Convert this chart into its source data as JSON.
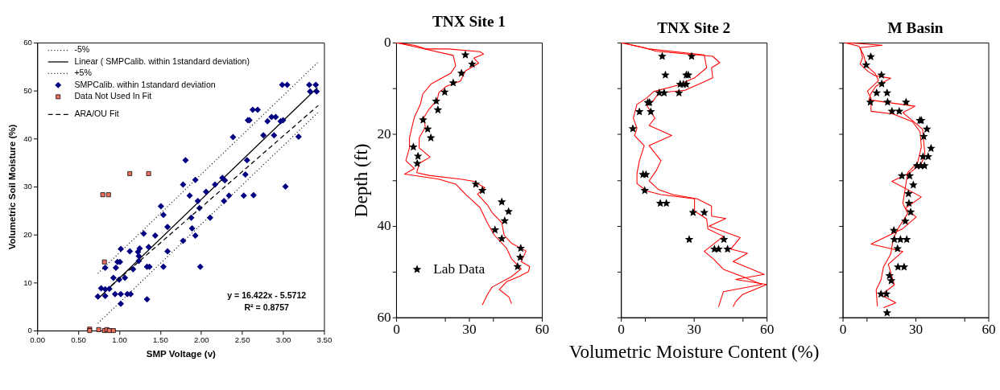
{
  "chart_data": [
    {
      "type": "scatter",
      "xlabel": "SMP Voltage (v)",
      "ylabel": "Volumetric Soil Moisture (%)",
      "xlim": [
        0,
        3.5
      ],
      "ylim": [
        0,
        60
      ],
      "xticks": [
        {
          "value": 0,
          "label": "0.00"
        },
        {
          "value": 0.5,
          "label": "0.50"
        },
        {
          "value": 1,
          "label": "1.00"
        },
        {
          "value": 1.5,
          "label": "1.50"
        },
        {
          "value": 2,
          "label": "2.00"
        },
        {
          "value": 2.5,
          "label": "2.50"
        },
        {
          "value": 3,
          "label": "3.00"
        },
        {
          "value": 3.5,
          "label": "3.50"
        }
      ],
      "yticks": [
        0,
        10,
        20,
        30,
        40,
        50,
        60
      ],
      "grid": false,
      "legend": "top left",
      "annotations": [
        "y = 16.422x - 5.5712",
        "R² = 0.8757"
      ],
      "series": [
        {
          "name": "-5%",
          "type": "line",
          "color": "#000000",
          "line_style": "dotted",
          "x": [
            0.74,
            3.43
          ],
          "values": [
            1.5,
            45.5
          ]
        },
        {
          "name": "Linear ( SMPCalib. within 1standard deviation)",
          "type": "line",
          "color": "#000000",
          "line_style": "solid",
          "x": [
            0.74,
            3.42
          ],
          "values": [
            6.6,
            50.6
          ]
        },
        {
          "name": "+5%",
          "type": "line",
          "color": "#000000",
          "line_style": "dotted",
          "x": [
            0.74,
            3.42
          ],
          "values": [
            11.9,
            55.8
          ]
        },
        {
          "name": "SMPCalib. within 1standard deviation",
          "marker": "diamond",
          "color": "#000080",
          "x": [
            0.74,
            0.78,
            0.83,
            0.83,
            0.83,
            0.88,
            0.93,
            0.95,
            0.96,
            0.98,
            1.01,
            1.0,
            1.02,
            1.02,
            1.02,
            1.07,
            1.1,
            1.14,
            1.13,
            1.17,
            1.23,
            1.24,
            1.25,
            1.24,
            1.3,
            1.34,
            1.34,
            1.36,
            1.37,
            1.44,
            1.51,
            1.54,
            1.54,
            1.59,
            1.59,
            1.78,
            1.78,
            1.81,
            1.86,
            1.88,
            1.89,
            1.93,
            1.93,
            1.96,
            1.98,
            1.99,
            2.06,
            2.11,
            2.17,
            2.26,
            2.28,
            2.29,
            2.34,
            2.39,
            2.52,
            2.54,
            2.56,
            2.57,
            2.59,
            2.63,
            2.64,
            2.69,
            2.76,
            2.81,
            2.86,
            2.89,
            2.91,
            2.97,
            3.0,
            2.99,
            3.05,
            3.03,
            3.19,
            3.32,
            3.33,
            3.4,
            3.41
          ],
          "values": [
            7.1,
            8.8,
            8.6,
            7.2,
            13.1,
            8.7,
            11.0,
            7.6,
            13.1,
            14.3,
            14.3,
            10.6,
            17.0,
            7.6,
            5.6,
            11.0,
            7.6,
            7.6,
            16.5,
            12.8,
            16.4,
            15.5,
            17.1,
            14.5,
            20.2,
            13.3,
            6.5,
            17.4,
            13.3,
            19.8,
            25.9,
            24.1,
            13.3,
            21.6,
            16.5,
            18.7,
            30.4,
            35.5,
            28.1,
            23.5,
            21.3,
            31.4,
            19.8,
            27.0,
            25.5,
            13.3,
            28.9,
            23.5,
            30.4,
            31.8,
            27.0,
            31.3,
            28.1,
            40.3,
            28.1,
            32.5,
            35.5,
            43.8,
            43.8,
            46.0,
            28.2,
            46.0,
            40.7,
            43.6,
            44.5,
            40.7,
            44.5,
            43.6,
            43.8,
            51.2,
            51.2,
            30.0,
            40.4,
            51.2,
            49.8,
            51.2,
            49.8
          ]
        },
        {
          "name": "Data Not Used In Fit",
          "marker": "square",
          "color": "#f07060",
          "x": [
            0.8,
            0.87,
            1.13,
            1.36,
            0.82,
            0.64,
            0.64,
            0.75,
            0.82,
            0.85,
            0.88,
            0.93
          ],
          "values": [
            28.3,
            28.3,
            32.7,
            32.7,
            14.3,
            0.3,
            0,
            0.2,
            0,
            0.2,
            0,
            0
          ]
        },
        {
          "name": "ARA/OU Fit",
          "type": "line",
          "color": "#000000",
          "line_style": "dashed",
          "x": [
            0.9,
            3.43
          ],
          "values": [
            9.3,
            46.9
          ]
        }
      ]
    },
    {
      "type": "line",
      "title": "TNX Site 1",
      "ylabel": "Depth (ft)",
      "xlim": [
        0,
        60
      ],
      "ylim": [
        60,
        0
      ],
      "xticks": [
        0,
        {
          "value": 20,
          "label": null
        },
        30,
        {
          "value": 40,
          "label": null
        },
        60
      ],
      "yticks": [
        0,
        {
          "value": 10,
          "label": null
        },
        20,
        {
          "value": 30,
          "label": null
        },
        40,
        {
          "value": 50,
          "label": null
        },
        60
      ],
      "grid": false,
      "legend": "bottom left",
      "series": [
        {
          "color": "#ff0000",
          "x": [
            0,
            7.5,
            12.5,
            21.5,
            34.5,
            36,
            32,
            34,
            28.5,
            26.5,
            20.5,
            17.5,
            17,
            13.5,
            11.5,
            12,
            9.5,
            9.5,
            14,
            9.5,
            8.5,
            13.5,
            26.5,
            32,
            36.5,
            33.5,
            37.5,
            39.5,
            43.5,
            44.5,
            47.5,
            53.5,
            51.5,
            55,
            54.5,
            50.5,
            45.5,
            42.5,
            46.5,
            47.5
          ],
          "values": [
            0,
            0.6,
            1.4,
            1.4,
            2.0,
            2.5,
            3.4,
            4.5,
            6.2,
            8.4,
            9.6,
            11.0,
            12.4,
            14.6,
            16.3,
            18.5,
            20.8,
            23.0,
            25.0,
            26.4,
            28.4,
            29.0,
            29.8,
            30.3,
            31.7,
            33.1,
            35.4,
            37.1,
            39.3,
            42.1,
            43.8,
            45.5,
            47.8,
            48.9,
            50.0,
            51.1,
            52.2,
            53.9,
            55.6,
            57.0
          ]
        },
        {
          "color": "#ff0000",
          "x": [
            0,
            23.5,
            24.5,
            22.5,
            14.5,
            11,
            10,
            7.5,
            6.5,
            5.5,
            5.5,
            4,
            7.5,
            3.5,
            17.5,
            24.5,
            28.5,
            34.5,
            37.5,
            40.5,
            45.5,
            47.5,
            51.5,
            47.5,
            39.5,
            37.5,
            35.5
          ],
          "values": [
            0,
            2.8,
            5.1,
            6.7,
            9.0,
            11.2,
            13.5,
            16.3,
            18.5,
            20.8,
            23.0,
            25.8,
            27.5,
            28.7,
            29.8,
            30.9,
            33.1,
            36.0,
            39.3,
            42.1,
            44.9,
            47.2,
            49.4,
            51.1,
            53.4,
            55.1,
            57.3
          ]
        },
        {
          "name": "Lab Data",
          "type": "scatter",
          "marker": "star",
          "color": "#000000",
          "x": [
            28.5,
            31.3,
            26.9,
            23.5,
            20,
            16.5,
            17.2,
            11.1,
            13,
            14.3,
            7.1,
            9,
            8.7,
            32.8,
            35.5,
            43.5,
            46.3,
            44.7,
            40.7,
            43.5,
            51.3,
            51.1,
            50
          ],
          "values": [
            2.7,
            4.7,
            6.7,
            8.8,
            10.8,
            12.8,
            14.7,
            16.9,
            18.9,
            20.8,
            22.8,
            24.8,
            26.4,
            30.9,
            32.3,
            34.8,
            36.9,
            38.9,
            40.9,
            42.8,
            44.9,
            46.9,
            48.9
          ]
        }
      ]
    },
    {
      "type": "line",
      "title": "TNX Site 2",
      "xlabel": "Volumetric Moisture Content (%)",
      "xlim": [
        0,
        60
      ],
      "ylim": [
        60,
        0
      ],
      "xticks": [
        0,
        {
          "value": 10,
          "label": null
        },
        30,
        {
          "value": 50,
          "label": null
        },
        60
      ],
      "yticks": [
        0,
        {
          "value": 10,
          "label": null
        },
        20,
        {
          "value": 30,
          "label": null
        },
        40,
        {
          "value": 50,
          "label": null
        },
        60
      ],
      "grid": false,
      "tick_labels": "x",
      "series": [
        {
          "color": "#ff0000",
          "x": [
            0,
            9.6,
            14.5,
            37.8,
            40.7,
            37.3,
            37.8,
            33.3,
            26.4,
            15.5,
            13.5,
            10.6,
            14.0,
            11.6,
            20.9,
            11.6,
            16.5,
            14.5,
            11.6,
            15.5,
            21.4,
            31.4,
            37.3,
            37.3,
            43.2,
            36.3,
            49.1,
            45.2,
            52.1,
            46.2,
            59.0,
            47.2,
            60,
            50.1,
            47.2,
            46.2
          ],
          "values": [
            0,
            1.1,
            1.9,
            3.0,
            4.4,
            5.5,
            7.7,
            8.8,
            10.4,
            11.0,
            12.6,
            13.7,
            16.5,
            18.1,
            20.3,
            22.5,
            25.8,
            28.0,
            30.2,
            32.1,
            33.2,
            34.1,
            35.7,
            37.9,
            38.4,
            40.1,
            42.6,
            45.1,
            46.0,
            47.8,
            50.6,
            51.7,
            52.8,
            55.0,
            56.6,
            57.7
          ]
        },
        {
          "color": "#ff0000",
          "x": [
            0,
            11.6,
            34.3,
            35.3,
            30.3,
            23.4,
            13.5,
            10.6,
            6.6,
            5.1,
            6.6,
            5.6,
            9.6,
            7.6,
            6.6,
            6.6,
            10.6,
            16.5,
            30.3,
            30.3,
            35.3,
            35.8,
            42.2,
            34.3,
            38.2,
            42.2,
            50.1,
            58.0,
            42.2,
            41.2,
            40.2
          ],
          "values": [
            0,
            1.4,
            2.7,
            5.5,
            7.7,
            9.3,
            10.7,
            12.1,
            13.5,
            16.5,
            18.7,
            20.3,
            22.5,
            25.8,
            28.6,
            30.8,
            32.4,
            33.2,
            34.1,
            36.8,
            38.5,
            40.7,
            42.3,
            45.6,
            47.3,
            49.5,
            51.1,
            52.8,
            54.4,
            56.0,
            57.7
          ]
        },
        {
          "type": "scatter",
          "marker": "star",
          "color": "#000000",
          "x": [
            17.0,
            29.1,
            18.3,
            26.9,
            27.7,
            24.4,
            25.7,
            26.9,
            15.8,
            17.8,
            23.9,
            11.1,
            11.8,
            7.6,
            12.3,
            4.9,
            9.1,
            10.3,
            9.8,
            16.2,
            18.7,
            29.7,
            34.3,
            28.1,
            42.4,
            38.5,
            40.2,
            43.9
          ],
          "values": [
            3.0,
            3.0,
            7.1,
            7.1,
            7.1,
            9.1,
            9.1,
            9.1,
            11.0,
            11.0,
            11.0,
            13.1,
            13.1,
            15.1,
            15.1,
            18.8,
            28.8,
            28.8,
            32.3,
            35.1,
            35.1,
            37.1,
            37.1,
            43.0,
            43.0,
            45.1,
            45.1,
            45.1
          ]
        }
      ]
    },
    {
      "type": "line",
      "title": "M Basin",
      "xlim": [
        0,
        60
      ],
      "ylim": [
        60,
        0
      ],
      "xticks": [
        0,
        {
          "value": 10,
          "label": null
        },
        30,
        {
          "value": 50,
          "label": null
        },
        60
      ],
      "yticks": [
        0,
        {
          "value": 10,
          "label": null
        },
        20,
        {
          "value": 30,
          "label": null
        },
        40,
        {
          "value": 50,
          "label": null
        },
        60
      ],
      "grid": false,
      "tick_labels": "x",
      "series": [
        {
          "color": "#ff0000",
          "x": [
            1.2,
            16.3,
            7.2,
            8.2,
            7.2,
            10.7,
            13.3,
            19.8,
            13.8,
            11.7,
            10.8,
            29.8,
            24.8,
            29.8,
            32.9,
            33.4,
            33.9,
            32.4,
            27.8,
            20.3,
            32.4,
            25.8,
            30.3,
            24.8,
            11.7,
            24.8,
            18.8,
            21.3,
            15.8,
            21.9,
            16.8
          ],
          "values": [
            0,
            0.6,
            1.1,
            3.3,
            4.7,
            6.4,
            7.2,
            7.8,
            9.5,
            11.1,
            12.5,
            13.9,
            15.3,
            17.5,
            18.9,
            21.7,
            24.5,
            26.4,
            28.4,
            30.3,
            33.7,
            36.2,
            38.1,
            40.6,
            44.0,
            45.6,
            48.4,
            52.9,
            55.1,
            56.8,
            57.9
          ]
        },
        {
          "color": "#ff0000",
          "x": [
            0.7,
            6.7,
            8.7,
            9.7,
            13.3,
            14.8,
            10.2,
            11.7,
            11.7,
            20.8,
            28.8,
            31.9,
            32.4,
            30.9,
            26.8,
            25.8,
            24.8,
            26.8,
            22.8,
            20.8,
            19.8,
            16.8,
            15.8,
            13.8,
            14.3
          ],
          "values": [
            0,
            0.8,
            2.8,
            5.0,
            6.7,
            8.3,
            10.6,
            12.2,
            15.0,
            15.6,
            17.3,
            19.5,
            22.8,
            26.2,
            28.4,
            31.7,
            35.1,
            37.3,
            40.6,
            42.9,
            46.2,
            49.0,
            51.8,
            54.0,
            57.6
          ]
        },
        {
          "type": "scatter",
          "marker": "star",
          "color": "#000000",
          "x": [
            11.6,
            9.7,
            16.0,
            16.1,
            14.0,
            18.3,
            11.4,
            18.5,
            26.1,
            20.3,
            23.3,
            31.8,
            32.4,
            34.7,
            33.4,
            36.4,
            33.1,
            35.2,
            30.6,
            32.1,
            33.7,
            24.4,
            27.6,
            29.1,
            27.1,
            27.3,
            28.0,
            25.8,
            21.1,
            21.3,
            23.8,
            26.4,
            22.6,
            22.8,
            25.3,
            19.3,
            20.0,
            15.8,
            18.0,
            18.3
          ],
          "values": [
            3.1,
            4.9,
            7.1,
            9.0,
            11.0,
            11.0,
            13.0,
            13.0,
            13.0,
            15.0,
            15.0,
            17.0,
            17.0,
            18.9,
            20.5,
            23.1,
            24.9,
            24.9,
            26.9,
            26.9,
            26.9,
            29.1,
            29.1,
            31.1,
            33.0,
            35.1,
            37.0,
            39.0,
            41.0,
            43.0,
            43.0,
            43.0,
            45.0,
            49.0,
            49.0,
            50.9,
            52.0,
            54.9,
            54.9,
            59.0
          ]
        }
      ]
    }
  ]
}
